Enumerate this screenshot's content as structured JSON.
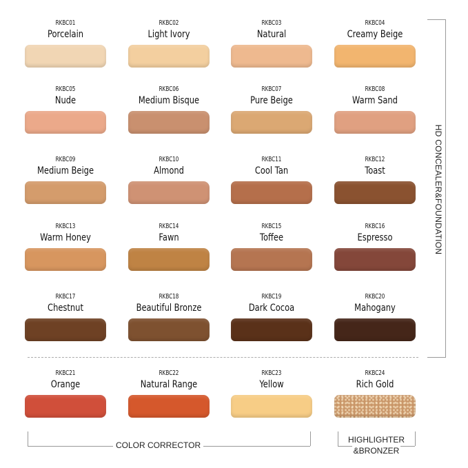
{
  "swatches": [
    {
      "code": "RKBC01",
      "name": "Porcelain",
      "color": "#f1d6b4"
    },
    {
      "code": "RKBC02",
      "name": "Light Ivory",
      "color": "#f3cf9f"
    },
    {
      "code": "RKBC03",
      "name": "Natural",
      "color": "#eeb98f"
    },
    {
      "code": "RKBC04",
      "name": "Creamy Beige",
      "color": "#f2b56f"
    },
    {
      "code": "RKBC05",
      "name": "Nude",
      "color": "#eba98a"
    },
    {
      "code": "RKBC06",
      "name": "Medium Bisque",
      "color": "#c9906f"
    },
    {
      "code": "RKBC07",
      "name": "Pure Beige",
      "color": "#dba873"
    },
    {
      "code": "RKBC08",
      "name": "Warm Sand",
      "color": "#e0a081"
    },
    {
      "code": "RKBC09",
      "name": "Medium Beige",
      "color": "#d49c6c"
    },
    {
      "code": "RKBC10",
      "name": "Almond",
      "color": "#cf9274"
    },
    {
      "code": "RKBC11",
      "name": "Cool Tan",
      "color": "#b56f4b"
    },
    {
      "code": "RKBC12",
      "name": "Toast",
      "color": "#8a5230"
    },
    {
      "code": "RKBC13",
      "name": "Warm Honey",
      "color": "#d7965f"
    },
    {
      "code": "RKBC14",
      "name": "Fawn",
      "color": "#bf8344"
    },
    {
      "code": "RKBC15",
      "name": "Toffee",
      "color": "#b57551"
    },
    {
      "code": "RKBC16",
      "name": "Espresso",
      "color": "#84473a"
    },
    {
      "code": "RKBC17",
      "name": "Chestnut",
      "color": "#6e4124"
    },
    {
      "code": "RKBC18",
      "name": "Beautiful Bronze",
      "color": "#7e5130"
    },
    {
      "code": "RKBC19",
      "name": "Dark Cocoa",
      "color": "#5a3119"
    },
    {
      "code": "RKBC20",
      "name": "Mahogany",
      "color": "#452619"
    },
    {
      "code": "RKBC21",
      "name": "Orange",
      "color": "#d04f3a"
    },
    {
      "code": "RKBC22",
      "name": "Natural Range",
      "color": "#d5582c"
    },
    {
      "code": "RKBC23",
      "name": "Yellow",
      "color": "#f7cd86"
    },
    {
      "code": "RKBC24",
      "name": "Rich Gold",
      "color": "#c99668"
    }
  ],
  "groups": {
    "foundation": "HD CONCEALER&FOUNDATION",
    "corrector": "COLOR CORRECTOR",
    "highlighter_line1": "HIGHLIGHTER",
    "highlighter_line2": "&BRONZER"
  }
}
